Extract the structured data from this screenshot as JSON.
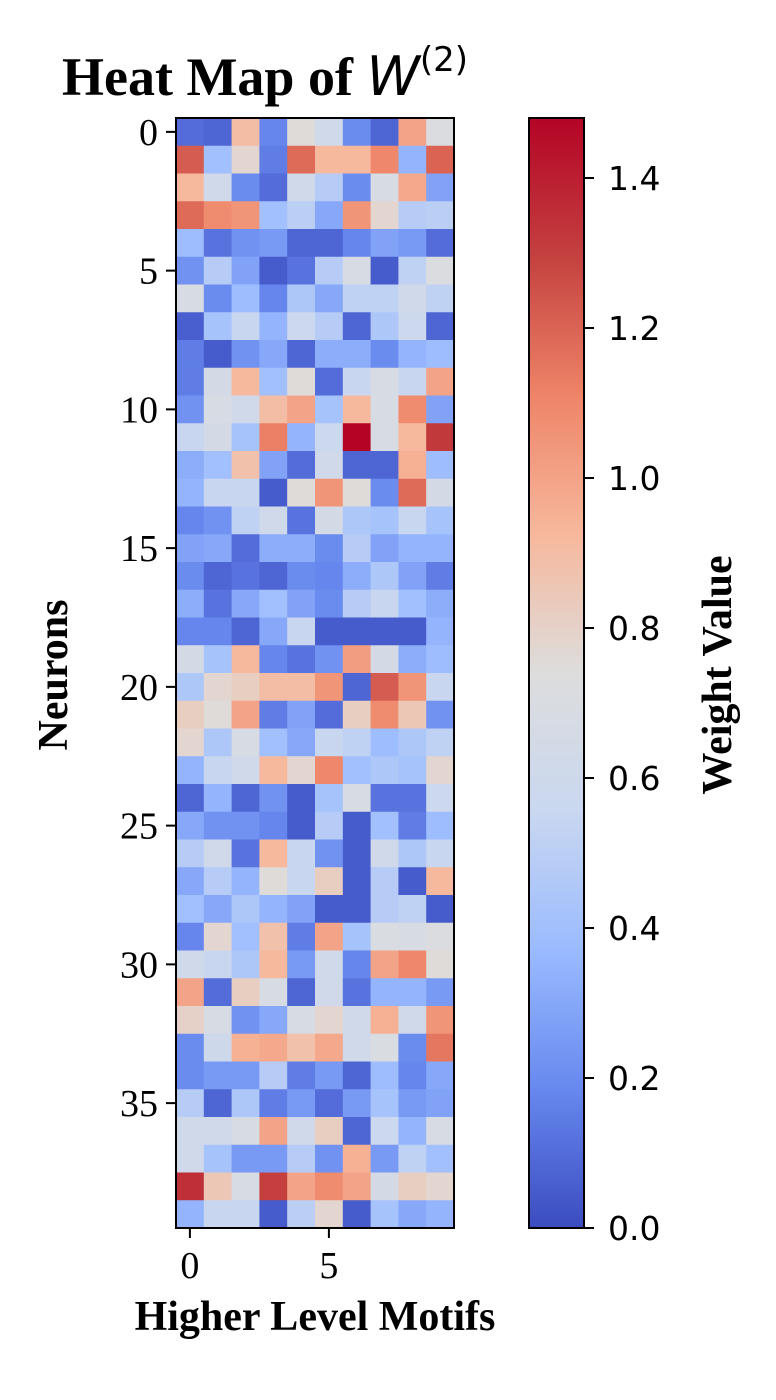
{
  "chart_data": {
    "type": "heatmap",
    "title_prefix": "Heat Map of ",
    "title_symbol": "W",
    "title_superscript": "(2)",
    "xlabel": "Higher Level Motifs",
    "ylabel": "Neurons",
    "colorbar_label": "Weight Value",
    "colormap": "coolwarm",
    "colormap_stops": [
      "#3b4cc0",
      "#6788ee",
      "#9abbff",
      "#c9d7f0",
      "#dddddd",
      "#f7b89c",
      "#ee8468",
      "#c4413f",
      "#b40426"
    ],
    "vmin": 0.0,
    "vmax": 1.48,
    "rows": 40,
    "cols": 10,
    "x_ticks": [
      0,
      5
    ],
    "x_tick_labels": [
      "0",
      "5"
    ],
    "y_ticks": [
      0,
      5,
      10,
      15,
      20,
      25,
      30,
      35
    ],
    "y_tick_labels": [
      "0",
      "5",
      "10",
      "15",
      "20",
      "25",
      "30",
      "35"
    ],
    "colorbar_ticks": [
      0.0,
      0.2,
      0.4,
      0.6,
      0.8,
      1.0,
      1.2,
      1.4
    ],
    "colorbar_tick_labels": [
      "0.0",
      "0.2",
      "0.4",
      "0.6",
      "0.8",
      "1.0",
      "1.2",
      "1.4"
    ],
    "values": [
      [
        0.1,
        0.08,
        0.9,
        0.18,
        0.75,
        0.62,
        0.2,
        0.08,
        1.0,
        0.72
      ],
      [
        1.22,
        0.4,
        0.78,
        0.15,
        1.18,
        0.92,
        0.92,
        1.1,
        0.35,
        1.2
      ],
      [
        0.92,
        0.62,
        0.2,
        0.1,
        0.62,
        0.48,
        0.2,
        0.68,
        0.98,
        0.28
      ],
      [
        1.18,
        1.08,
        1.05,
        0.4,
        0.5,
        0.3,
        1.05,
        0.78,
        0.48,
        0.5
      ],
      [
        0.38,
        0.12,
        0.22,
        0.25,
        0.08,
        0.08,
        0.18,
        0.28,
        0.25,
        0.1
      ],
      [
        0.22,
        0.48,
        0.28,
        0.05,
        0.12,
        0.48,
        0.68,
        0.05,
        0.52,
        0.72
      ],
      [
        0.68,
        0.2,
        0.38,
        0.18,
        0.45,
        0.3,
        0.52,
        0.52,
        0.62,
        0.52
      ],
      [
        0.06,
        0.42,
        0.55,
        0.35,
        0.58,
        0.48,
        0.08,
        0.45,
        0.58,
        0.08
      ],
      [
        0.15,
        0.05,
        0.22,
        0.3,
        0.08,
        0.32,
        0.32,
        0.2,
        0.35,
        0.38
      ],
      [
        0.15,
        0.65,
        0.92,
        0.4,
        0.75,
        0.1,
        0.55,
        0.68,
        0.55,
        1.0
      ],
      [
        0.22,
        0.68,
        0.62,
        0.9,
        1.0,
        0.42,
        0.92,
        0.68,
        1.08,
        0.28
      ],
      [
        0.55,
        0.65,
        0.42,
        1.12,
        0.35,
        0.58,
        1.48,
        0.68,
        0.92,
        1.32
      ],
      [
        0.32,
        0.4,
        0.88,
        0.28,
        0.1,
        0.62,
        0.08,
        0.08,
        0.95,
        0.38
      ],
      [
        0.35,
        0.55,
        0.55,
        0.05,
        0.75,
        1.05,
        0.75,
        0.2,
        1.18,
        0.65
      ],
      [
        0.18,
        0.22,
        0.52,
        0.62,
        0.12,
        0.65,
        0.45,
        0.42,
        0.55,
        0.42
      ],
      [
        0.28,
        0.3,
        0.1,
        0.32,
        0.32,
        0.2,
        0.48,
        0.28,
        0.35,
        0.35
      ],
      [
        0.2,
        0.08,
        0.12,
        0.08,
        0.2,
        0.18,
        0.32,
        0.45,
        0.28,
        0.15
      ],
      [
        0.32,
        0.12,
        0.3,
        0.4,
        0.28,
        0.2,
        0.48,
        0.55,
        0.4,
        0.32
      ],
      [
        0.18,
        0.18,
        0.08,
        0.3,
        0.55,
        0.05,
        0.05,
        0.05,
        0.05,
        0.35
      ],
      [
        0.65,
        0.42,
        0.92,
        0.18,
        0.12,
        0.22,
        1.02,
        0.65,
        0.32,
        0.38
      ],
      [
        0.45,
        0.78,
        0.82,
        0.9,
        0.9,
        1.05,
        0.08,
        1.22,
        1.05,
        0.55
      ],
      [
        0.82,
        0.75,
        1.0,
        0.15,
        0.28,
        0.1,
        0.82,
        1.08,
        0.85,
        0.22
      ],
      [
        0.78,
        0.45,
        0.68,
        0.4,
        0.3,
        0.55,
        0.52,
        0.38,
        0.45,
        0.52
      ],
      [
        0.35,
        0.55,
        0.62,
        0.92,
        0.78,
        1.1,
        0.4,
        0.45,
        0.42,
        0.78
      ],
      [
        0.08,
        0.35,
        0.08,
        0.22,
        0.05,
        0.42,
        0.68,
        0.12,
        0.12,
        0.58
      ],
      [
        0.3,
        0.22,
        0.22,
        0.18,
        0.05,
        0.48,
        0.05,
        0.4,
        0.15,
        0.38
      ],
      [
        0.48,
        0.62,
        0.12,
        0.92,
        0.55,
        0.22,
        0.05,
        0.62,
        0.45,
        0.55
      ],
      [
        0.3,
        0.48,
        0.35,
        0.75,
        0.55,
        0.82,
        0.05,
        0.48,
        0.05,
        0.92
      ],
      [
        0.4,
        0.3,
        0.45,
        0.35,
        0.28,
        0.05,
        0.05,
        0.48,
        0.52,
        0.05
      ],
      [
        0.18,
        0.78,
        0.4,
        0.88,
        0.15,
        1.0,
        0.42,
        0.7,
        0.68,
        0.72
      ],
      [
        0.62,
        0.55,
        0.45,
        0.92,
        0.25,
        0.62,
        0.18,
        1.0,
        1.1,
        0.75
      ],
      [
        1.0,
        0.1,
        0.82,
        0.68,
        0.08,
        0.62,
        0.12,
        0.35,
        0.35,
        0.25
      ],
      [
        0.8,
        0.68,
        0.22,
        0.3,
        0.68,
        0.78,
        0.62,
        0.95,
        0.62,
        1.05
      ],
      [
        0.2,
        0.6,
        0.95,
        0.98,
        0.88,
        0.98,
        0.62,
        0.7,
        0.2,
        1.15
      ],
      [
        0.2,
        0.25,
        0.25,
        0.48,
        0.15,
        0.25,
        0.08,
        0.38,
        0.18,
        0.3
      ],
      [
        0.48,
        0.08,
        0.45,
        0.15,
        0.25,
        0.1,
        0.25,
        0.42,
        0.25,
        0.28
      ],
      [
        0.62,
        0.62,
        0.68,
        1.0,
        0.62,
        0.82,
        0.08,
        0.58,
        0.35,
        0.68
      ],
      [
        0.62,
        0.42,
        0.25,
        0.25,
        0.48,
        0.22,
        0.95,
        0.25,
        0.52,
        0.4
      ],
      [
        1.35,
        0.85,
        0.68,
        1.3,
        1.0,
        1.08,
        1.0,
        0.65,
        0.82,
        0.78
      ],
      [
        0.35,
        0.55,
        0.55,
        0.05,
        0.5,
        0.78,
        0.05,
        0.42,
        0.3,
        0.35
      ]
    ]
  }
}
